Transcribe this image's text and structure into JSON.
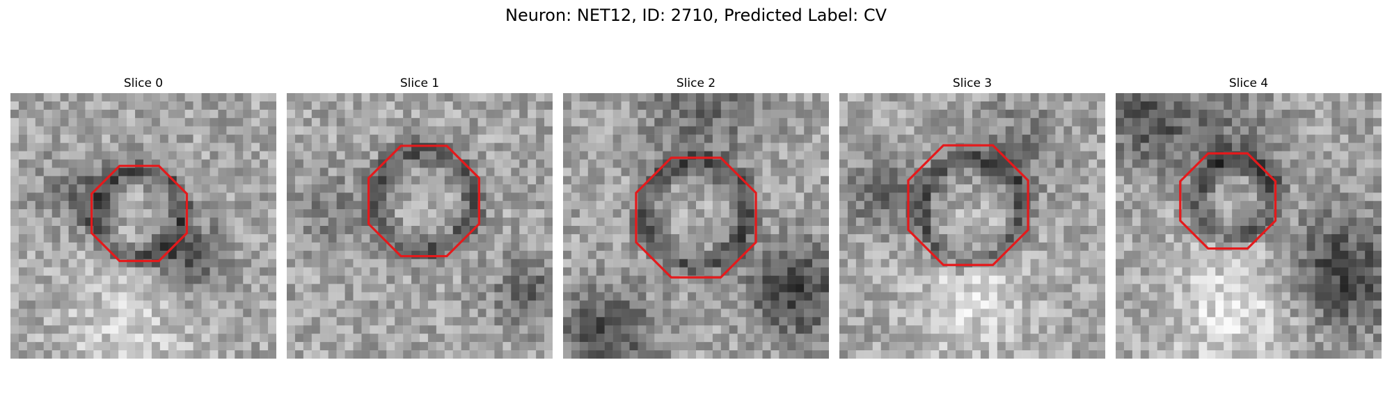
{
  "figure": {
    "title": "Neuron: NET12, ID: 2710, Predicted Label: CV",
    "outline_color": "#e41a1c",
    "colormap": "grayscale"
  },
  "slices": [
    {
      "title": "Slice 0"
    },
    {
      "title": "Slice 1"
    },
    {
      "title": "Slice 2"
    },
    {
      "title": "Slice 3"
    },
    {
      "title": "Slice 4"
    }
  ]
}
